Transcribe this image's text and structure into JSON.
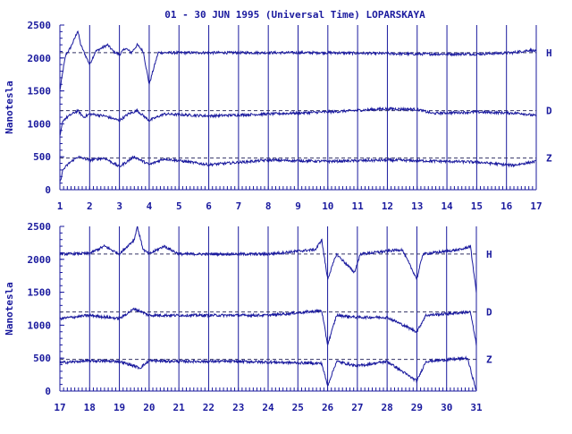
{
  "title": "01 - 30 JUN 1995 (Universal Time) LOPARSKAYA",
  "colors": {
    "data": "#1a1a9e",
    "axis": "#1a1a9e",
    "background": "#ffffff"
  },
  "chart_data": [
    {
      "type": "line",
      "ylabel": "Nanotesla",
      "ylim": [
        0,
        2500
      ],
      "yticks": [
        "0",
        "500",
        "1000",
        "1500",
        "2000",
        "2500"
      ],
      "xlim": [
        1,
        17
      ],
      "xticks": [
        "1",
        "2",
        "3",
        "4",
        "5",
        "6",
        "7",
        "8",
        "9",
        "10",
        "11",
        "12",
        "13",
        "14",
        "15",
        "16",
        "17"
      ],
      "grid": "vertical lines at each day",
      "series": [
        {
          "name": "H",
          "baseline": 2080,
          "values": [
            [
              1,
              1500
            ],
            [
              1.1,
              1800
            ],
            [
              1.2,
              2050
            ],
            [
              1.35,
              2150
            ],
            [
              1.5,
              2300
            ],
            [
              1.6,
              2420
            ],
            [
              1.7,
              2200
            ],
            [
              1.85,
              2050
            ],
            [
              2,
              1900
            ],
            [
              2.2,
              2100
            ],
            [
              2.4,
              2150
            ],
            [
              2.6,
              2200
            ],
            [
              2.8,
              2100
            ],
            [
              3,
              2050
            ],
            [
              3.2,
              2150
            ],
            [
              3.4,
              2080
            ],
            [
              3.6,
              2200
            ],
            [
              3.8,
              2100
            ],
            [
              4,
              1600
            ],
            [
              4.3,
              2080
            ],
            [
              6,
              2080
            ],
            [
              10,
              2080
            ],
            [
              13,
              2060
            ],
            [
              15,
              2060
            ],
            [
              16.2,
              2080
            ],
            [
              16.8,
              2120
            ],
            [
              17,
              2100
            ]
          ]
        },
        {
          "name": "D",
          "baseline": 1200,
          "values": [
            [
              1,
              800
            ],
            [
              1.1,
              1050
            ],
            [
              1.3,
              1120
            ],
            [
              1.6,
              1200
            ],
            [
              1.8,
              1100
            ],
            [
              2,
              1150
            ],
            [
              2.5,
              1120
            ],
            [
              3,
              1050
            ],
            [
              3.3,
              1150
            ],
            [
              3.6,
              1200
            ],
            [
              4,
              1050
            ],
            [
              4.5,
              1150
            ],
            [
              6,
              1120
            ],
            [
              10,
              1180
            ],
            [
              12,
              1230
            ],
            [
              13,
              1220
            ],
            [
              13.5,
              1160
            ],
            [
              15,
              1180
            ],
            [
              16.5,
              1160
            ],
            [
              17,
              1120
            ]
          ]
        },
        {
          "name": "Z",
          "baseline": 480,
          "values": [
            [
              1,
              100
            ],
            [
              1.1,
              300
            ],
            [
              1.3,
              400
            ],
            [
              1.6,
              500
            ],
            [
              2,
              450
            ],
            [
              2.5,
              480
            ],
            [
              3,
              350
            ],
            [
              3.5,
              500
            ],
            [
              4,
              380
            ],
            [
              4.5,
              470
            ],
            [
              6,
              380
            ],
            [
              8,
              450
            ],
            [
              10,
              430
            ],
            [
              12,
              450
            ],
            [
              15,
              420
            ],
            [
              16.2,
              370
            ],
            [
              17,
              430
            ]
          ]
        }
      ]
    },
    {
      "type": "line",
      "ylabel": "Nanotesla",
      "ylim": [
        0,
        2500
      ],
      "yticks": [
        "0",
        "500",
        "1000",
        "1500",
        "2000",
        "2500"
      ],
      "xlim": [
        17,
        31
      ],
      "xticks": [
        "17",
        "18",
        "19",
        "20",
        "21",
        "22",
        "23",
        "24",
        "25",
        "26",
        "27",
        "28",
        "29",
        "30",
        "31"
      ],
      "grid": "vertical lines at each day",
      "series": [
        {
          "name": "H",
          "baseline": 2080,
          "values": [
            [
              17,
              2080
            ],
            [
              18,
              2090
            ],
            [
              18.5,
              2200
            ],
            [
              19,
              2080
            ],
            [
              19.5,
              2300
            ],
            [
              19.6,
              2500
            ],
            [
              19.8,
              2150
            ],
            [
              20,
              2080
            ],
            [
              20.5,
              2200
            ],
            [
              21,
              2080
            ],
            [
              24,
              2080
            ],
            [
              25.6,
              2150
            ],
            [
              25.8,
              2300
            ],
            [
              26,
              1700
            ],
            [
              26.3,
              2080
            ],
            [
              26.9,
              1800
            ],
            [
              27.1,
              2080
            ],
            [
              28.5,
              2150
            ],
            [
              29,
              1700
            ],
            [
              29.2,
              2080
            ],
            [
              30.5,
              2150
            ],
            [
              30.8,
              2200
            ],
            [
              31,
              1500
            ]
          ]
        },
        {
          "name": "D",
          "baseline": 1200,
          "values": [
            [
              17,
              1100
            ],
            [
              18,
              1150
            ],
            [
              19,
              1100
            ],
            [
              19.5,
              1250
            ],
            [
              20,
              1150
            ],
            [
              21,
              1150
            ],
            [
              24,
              1150
            ],
            [
              25.8,
              1220
            ],
            [
              26,
              700
            ],
            [
              26.3,
              1150
            ],
            [
              27,
              1120
            ],
            [
              28,
              1120
            ],
            [
              29,
              900
            ],
            [
              29.3,
              1150
            ],
            [
              30.8,
              1200
            ],
            [
              31,
              700
            ]
          ]
        },
        {
          "name": "Z",
          "baseline": 480,
          "values": [
            [
              17,
              430
            ],
            [
              18,
              460
            ],
            [
              19,
              450
            ],
            [
              19.7,
              350
            ],
            [
              20,
              460
            ],
            [
              21,
              450
            ],
            [
              23,
              450
            ],
            [
              25.8,
              420
            ],
            [
              26,
              80
            ],
            [
              26.3,
              450
            ],
            [
              27,
              380
            ],
            [
              28,
              450
            ],
            [
              29,
              150
            ],
            [
              29.3,
              450
            ],
            [
              30.7,
              500
            ],
            [
              31,
              0
            ]
          ]
        }
      ]
    }
  ],
  "panel_labels": {
    "h": "H",
    "d": "D",
    "z": "Z"
  }
}
